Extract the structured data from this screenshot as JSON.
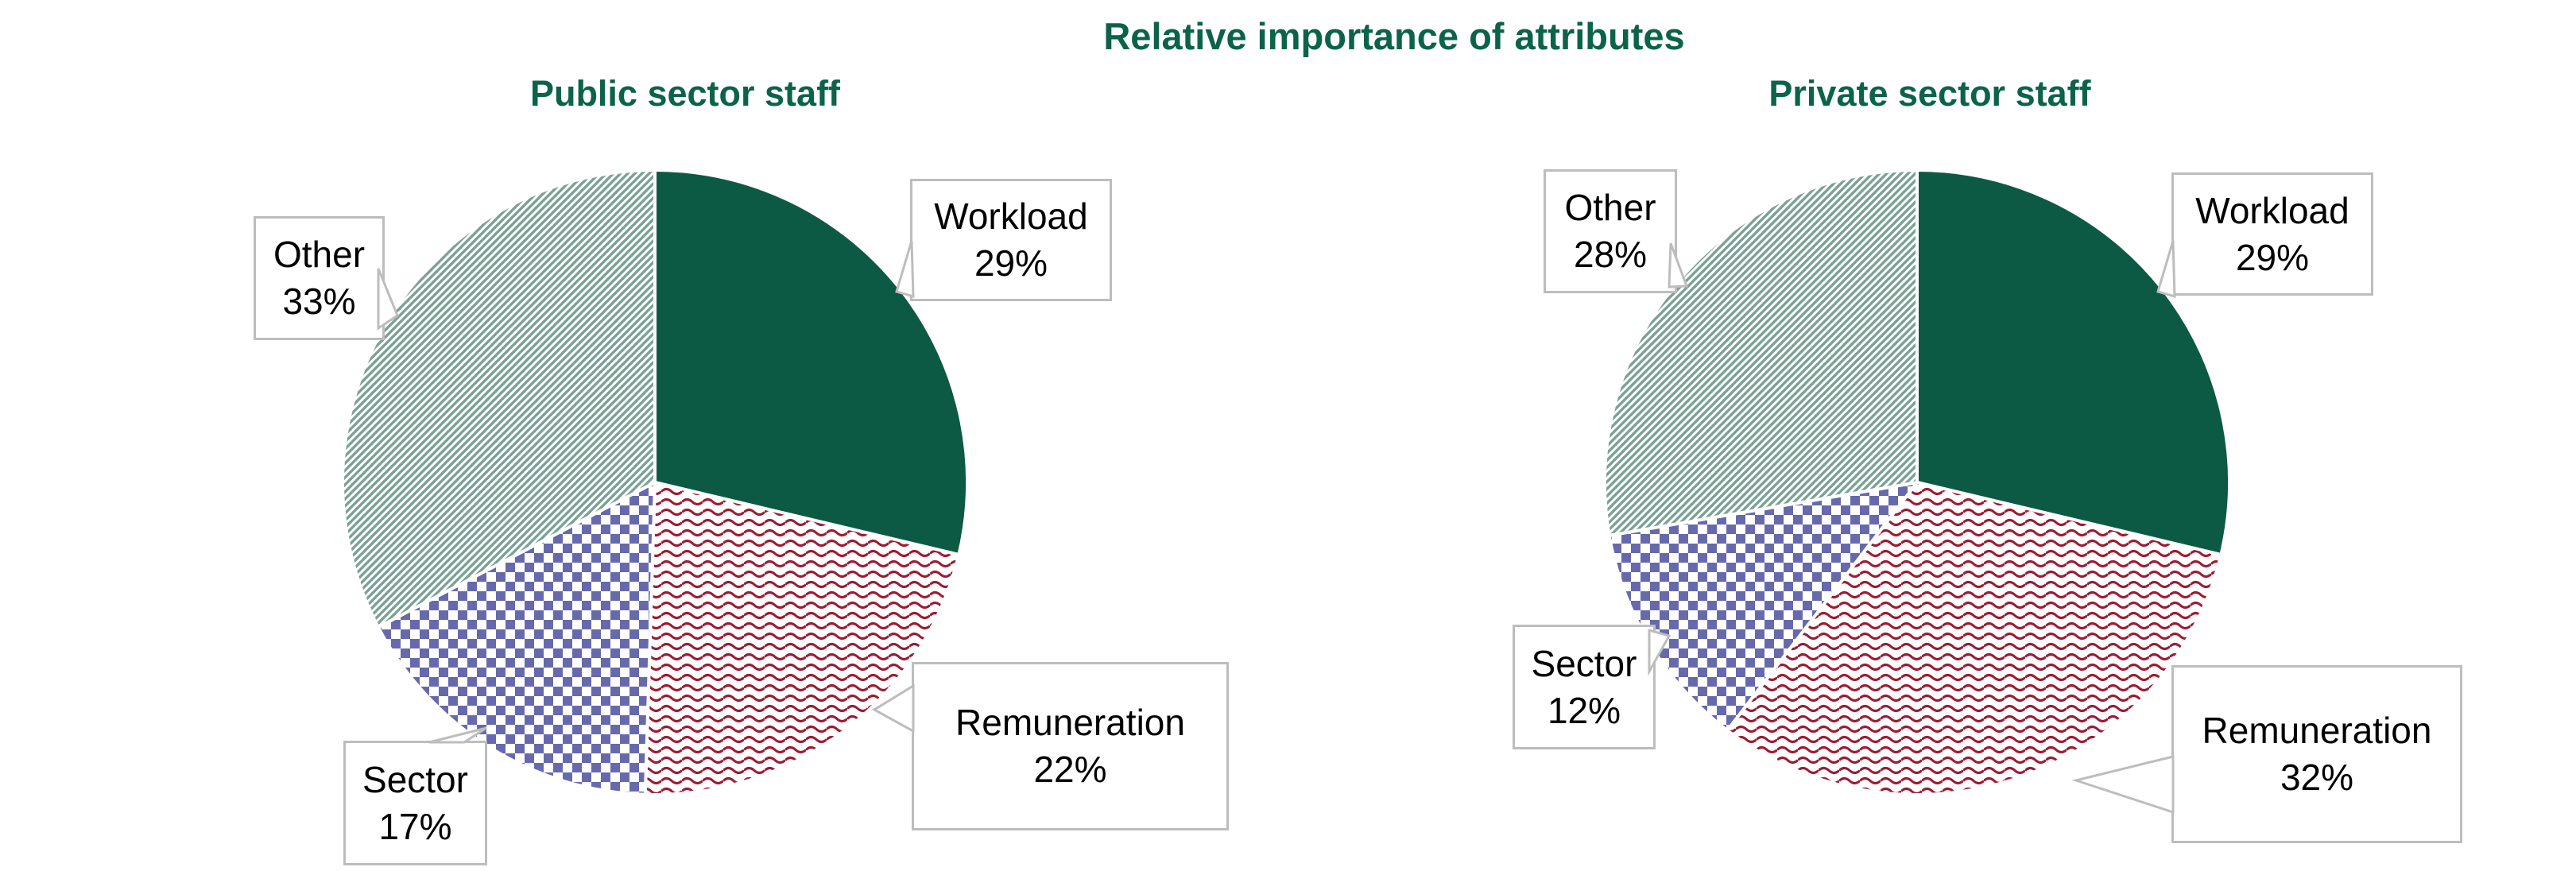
{
  "title": "Relative importance of attributes",
  "colors": {
    "title_green": "#0b6349",
    "slice_solid_green": "#0c5a43",
    "wavy_red": "#9c1b33",
    "checker_blue": "#6769ad",
    "stripe_green": "#7aa294",
    "callout_border": "#bdbdbd",
    "label_text": "#000000",
    "background": "#ffffff"
  },
  "chart_data": [
    {
      "type": "pie",
      "title": "Public sector staff",
      "start_angle_deg": 0,
      "direction": "clockwise",
      "slices": [
        {
          "label": "Workload",
          "value": 29,
          "display": "29%",
          "style": "solid"
        },
        {
          "label": "Remuneration",
          "value": 22,
          "display": "22%",
          "style": "wavy"
        },
        {
          "label": "Sector",
          "value": 17,
          "display": "17%",
          "style": "checker"
        },
        {
          "label": "Other",
          "value": 33,
          "display": "33%",
          "style": "stripe"
        }
      ]
    },
    {
      "type": "pie",
      "title": "Private sector staff",
      "start_angle_deg": 0,
      "direction": "clockwise",
      "slices": [
        {
          "label": "Workload",
          "value": 29,
          "display": "29%",
          "style": "solid"
        },
        {
          "label": "Remuneration",
          "value": 32,
          "display": "32%",
          "style": "wavy"
        },
        {
          "label": "Sector",
          "value": 12,
          "display": "12%",
          "style": "checker"
        },
        {
          "label": "Other",
          "value": 28,
          "display": "28%",
          "style": "stripe"
        }
      ]
    }
  ]
}
